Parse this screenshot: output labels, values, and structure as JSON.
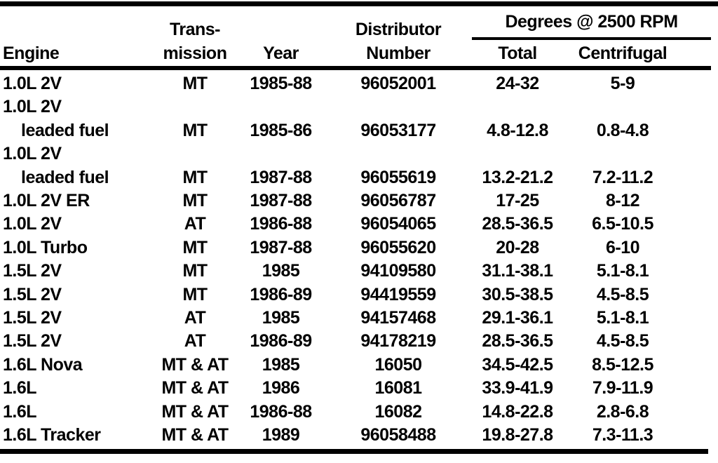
{
  "table": {
    "header": {
      "engine": "Engine",
      "transmission_line1": "Trans-",
      "transmission_line2": "mission",
      "year": "Year",
      "distributor_line1": "Distributor",
      "distributor_line2": "Number",
      "degrees_spanner": "Degrees @ 2500 RPM",
      "total": "Total",
      "centrifugal": "Centrifugal"
    },
    "rows": [
      {
        "engine": "1.0L 2V",
        "transmission": "MT",
        "year": "1985-88",
        "distributor": "96052001",
        "total": "24-32",
        "centrifugal": "5-9"
      },
      {
        "engine": "1.0L 2V",
        "engine_line2": "leaded fuel",
        "transmission": "MT",
        "year": "1985-86",
        "distributor": "96053177",
        "total": "4.8-12.8",
        "centrifugal": "0.8-4.8"
      },
      {
        "engine": "1.0L 2V",
        "engine_line2": "leaded fuel",
        "transmission": "MT",
        "year": "1987-88",
        "distributor": "96055619",
        "total": "13.2-21.2",
        "centrifugal": "7.2-11.2"
      },
      {
        "engine": "1.0L 2V ER",
        "transmission": "MT",
        "year": "1987-88",
        "distributor": "96056787",
        "total": "17-25",
        "centrifugal": "8-12"
      },
      {
        "engine": "1.0L 2V",
        "transmission": "AT",
        "year": "1986-88",
        "distributor": "96054065",
        "total": "28.5-36.5",
        "centrifugal": "6.5-10.5"
      },
      {
        "engine": "1.0L Turbo",
        "transmission": "MT",
        "year": "1987-88",
        "distributor": "96055620",
        "total": "20-28",
        "centrifugal": "6-10"
      },
      {
        "engine": "1.5L 2V",
        "transmission": "MT",
        "year": "1985",
        "distributor": "94109580",
        "total": "31.1-38.1",
        "centrifugal": "5.1-8.1"
      },
      {
        "engine": "1.5L 2V",
        "transmission": "MT",
        "year": "1986-89",
        "distributor": "94419559",
        "total": "30.5-38.5",
        "centrifugal": "4.5-8.5"
      },
      {
        "engine": "1.5L 2V",
        "transmission": "AT",
        "year": "1985",
        "distributor": "94157468",
        "total": "29.1-36.1",
        "centrifugal": "5.1-8.1"
      },
      {
        "engine": "1.5L 2V",
        "transmission": "AT",
        "year": "1986-89",
        "distributor": "94178219",
        "total": "28.5-36.5",
        "centrifugal": "4.5-8.5"
      },
      {
        "engine": "1.6L Nova",
        "transmission": "MT & AT",
        "year": "1985",
        "distributor": "16050",
        "total": "34.5-42.5",
        "centrifugal": "8.5-12.5"
      },
      {
        "engine": "1.6L",
        "transmission": "MT & AT",
        "year": "1986",
        "distributor": "16081",
        "total": "33.9-41.9",
        "centrifugal": "7.9-11.9"
      },
      {
        "engine": "1.6L",
        "transmission": "MT & AT",
        "year": "1986-88",
        "distributor": "16082",
        "total": "14.8-22.8",
        "centrifugal": "2.8-6.8"
      },
      {
        "engine": "1.6L Tracker",
        "transmission": "MT & AT",
        "year": "1989",
        "distributor": "96058488",
        "total": "19.8-27.8",
        "centrifugal": "7.3-11.3"
      }
    ]
  },
  "colors": {
    "ink": "#000000",
    "paper": "#ffffff"
  }
}
